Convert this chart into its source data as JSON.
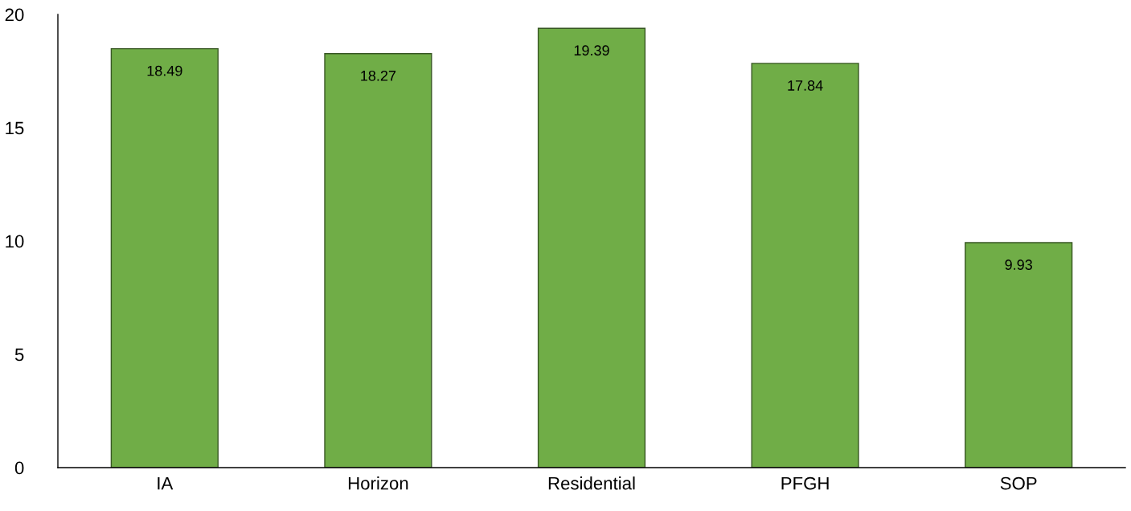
{
  "chart_data": {
    "type": "bar",
    "categories": [
      "IA",
      "Horizon",
      "Residential",
      "PFGH",
      "SOP"
    ],
    "values": [
      18.49,
      18.27,
      19.39,
      17.84,
      9.93
    ],
    "color": "#70ad47",
    "ylim": [
      0,
      20
    ],
    "yticks": [
      0,
      5,
      10,
      15,
      20
    ],
    "data_labels": true,
    "grid": false
  }
}
